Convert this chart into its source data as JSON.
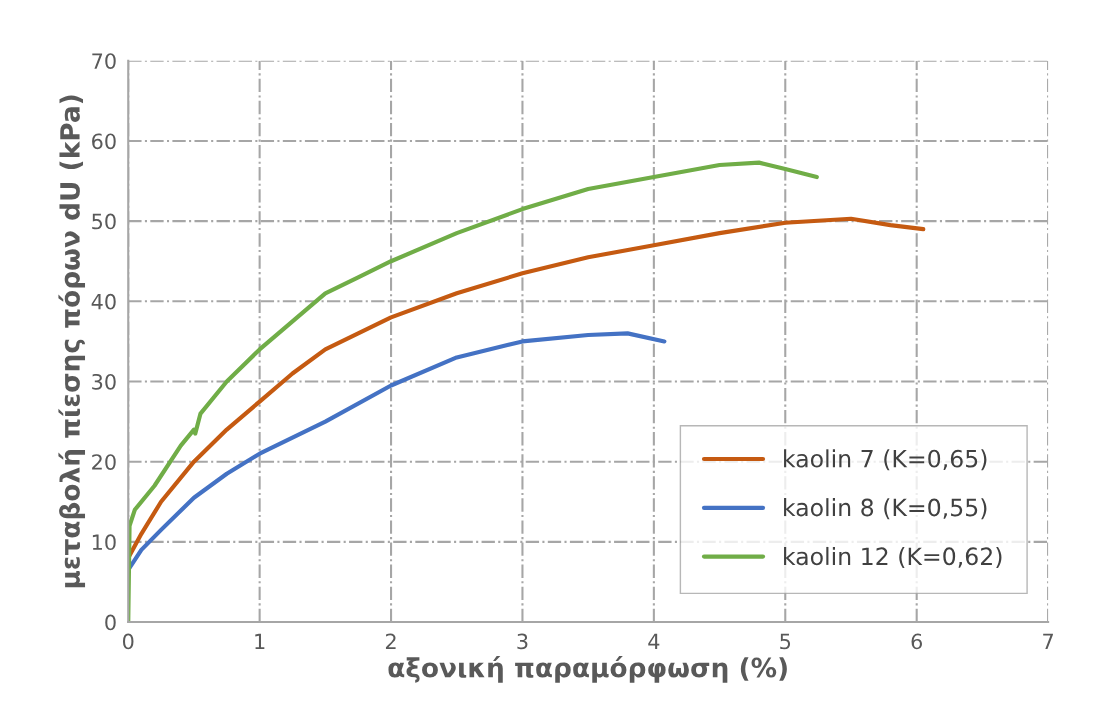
{
  "chart_data": {
    "type": "line",
    "xlabel": "αξονική παραμόρφωση (%)",
    "ylabel": "μεταβολή πίεσης πόρων dU (kPa)",
    "xlim": [
      0,
      7
    ],
    "xticks": [
      0,
      1,
      2,
      3,
      4,
      5,
      6,
      7
    ],
    "ylim": [
      0,
      70
    ],
    "yticks": [
      0,
      10,
      20,
      30,
      40,
      50,
      60,
      70
    ],
    "grid": true,
    "legend": "bottom right",
    "marker": "none",
    "line_style": "solid",
    "series": [
      {
        "name": "kaolin 7 (K=0,65)",
        "color": "#c55a11",
        "x": [
          0,
          0.1,
          0.25,
          0.5,
          0.75,
          1,
          1.25,
          1.5,
          1.75,
          2,
          2.5,
          3,
          3.5,
          4,
          4.5,
          5,
          5.5,
          5.8,
          6.05
        ],
        "values": [
          8,
          11,
          15,
          20,
          24,
          27.5,
          31,
          34,
          36,
          38,
          41,
          43.5,
          45.5,
          47,
          48.5,
          49.8,
          50.3,
          49.5,
          49
        ]
      },
      {
        "name": "kaolin 8 (K=0,55)",
        "color": "#4472c4",
        "x": [
          0,
          0.1,
          0.25,
          0.5,
          0.75,
          1,
          1.5,
          2,
          2.5,
          3,
          3.5,
          3.8,
          4.08
        ],
        "values": [
          6.5,
          9,
          11.5,
          15.5,
          18.5,
          21,
          25,
          29.5,
          33,
          35,
          35.8,
          36,
          35
        ]
      },
      {
        "name": "kaolin 12 (K=0,62)",
        "color": "#70ad47",
        "x": [
          0,
          0.01,
          0.05,
          0.2,
          0.4,
          0.5,
          0.51,
          0.55,
          0.75,
          1,
          1.25,
          1.5,
          1.75,
          2,
          2.5,
          3,
          3.5,
          4,
          4.5,
          4.8,
          5,
          5.24
        ],
        "values": [
          0,
          12,
          14,
          17,
          22,
          24,
          23.5,
          26,
          30,
          34,
          37.5,
          41,
          43,
          45,
          48.5,
          51.5,
          54,
          55.5,
          57,
          57.3,
          56.5,
          55.5
        ]
      }
    ]
  }
}
